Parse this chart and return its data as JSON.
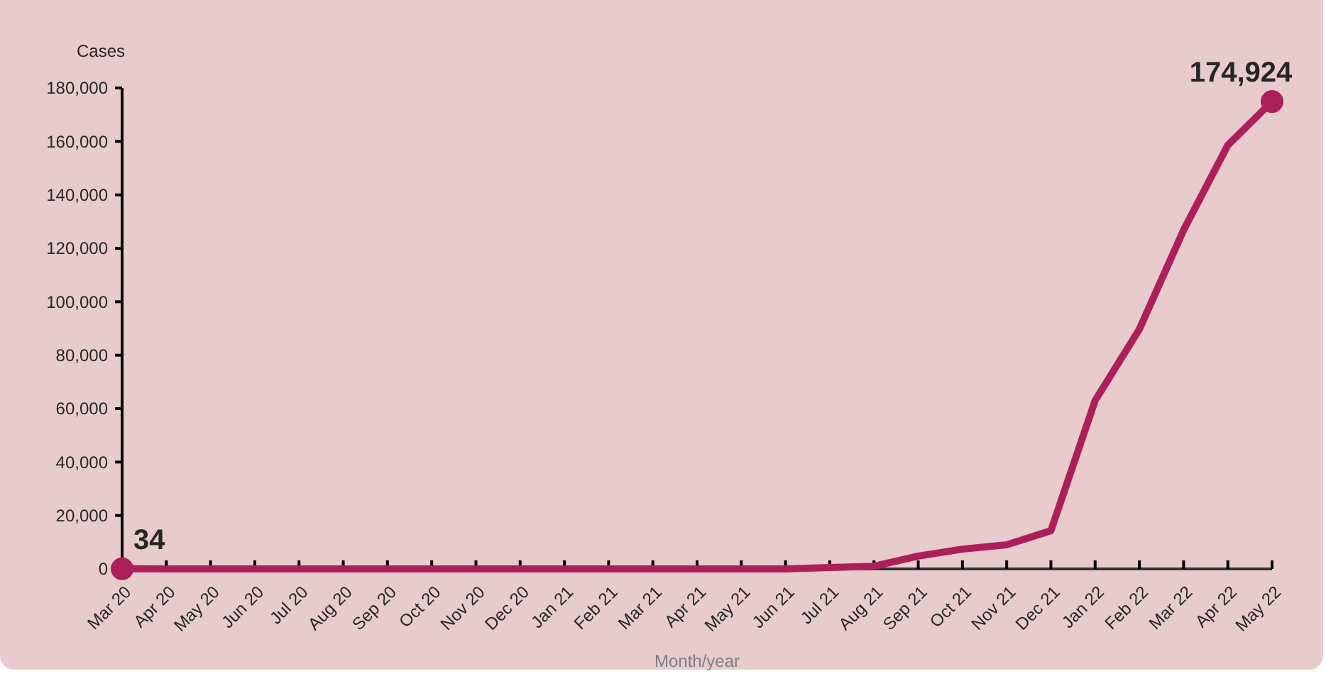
{
  "chart_data": {
    "type": "line",
    "ylabel": "Cases",
    "xlabel": "Month/year",
    "categories": [
      "Mar 20",
      "Apr 20",
      "May 20",
      "Jun 20",
      "Jul 20",
      "Aug 20",
      "Sep 20",
      "Oct 20",
      "Nov 20",
      "Dec 20",
      "Jan 21",
      "Feb 21",
      "Mar 21",
      "Apr 21",
      "May 21",
      "Jun 21",
      "Jul 21",
      "Aug 21",
      "Sep 21",
      "Oct 21",
      "Nov 21",
      "Dec 21",
      "Jan 22",
      "Feb 22",
      "Mar 22",
      "Apr 22",
      "May 22"
    ],
    "series": [
      {
        "color": "#ad1f5a",
        "values": [
          34,
          0,
          0,
          0,
          0,
          0,
          0,
          0,
          0,
          0,
          0,
          0,
          0,
          0,
          0,
          0,
          500,
          1000,
          4800,
          7400,
          9000,
          14300,
          63000,
          89700,
          126800,
          158600,
          174924
        ],
        "value_labels": [
          "34",
          null,
          null,
          null,
          null,
          null,
          null,
          null,
          null,
          null,
          null,
          null,
          null,
          null,
          null,
          null,
          null,
          null,
          null,
          null,
          null,
          null,
          null,
          null,
          null,
          null,
          "174,924"
        ]
      },
      {
        "type": "scatter",
        "color": "#ad1f5a",
        "marker": "circle",
        "x": [
          "Mar 20",
          "May 22"
        ],
        "values": [
          34,
          174924
        ]
      }
    ],
    "ylim": [
      0,
      180000
    ],
    "yticks": [
      {
        "value": 0,
        "label": "0"
      },
      {
        "value": 20000,
        "label": "20,000"
      },
      {
        "value": 40000,
        "label": "40,000"
      },
      {
        "value": 60000,
        "label": "60,000"
      },
      {
        "value": 80000,
        "label": "80,000"
      },
      {
        "value": 100000,
        "label": "100,000"
      },
      {
        "value": 120000,
        "label": "120,000"
      },
      {
        "value": 140000,
        "label": "140,000"
      },
      {
        "value": 160000,
        "label": "160,000"
      },
      {
        "value": 180000,
        "label": "180,000"
      }
    ],
    "grid": false,
    "line_style": "solid"
  }
}
